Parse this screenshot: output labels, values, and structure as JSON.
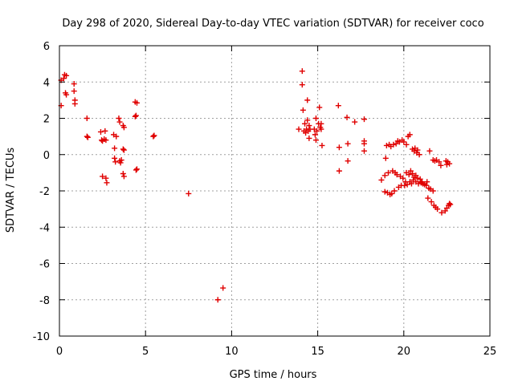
{
  "chart_data": {
    "type": "scatter",
    "title": "Day 298 of 2020, Sidereal Day-to-day VTEC variation (SDTVAR) for receiver coco",
    "xlabel": "GPS time / hours",
    "ylabel": "SDTVAR / TECUs",
    "xlim": [
      0,
      25
    ],
    "ylim": [
      -10,
      6
    ],
    "xticks": [
      0,
      5,
      10,
      15,
      20,
      25
    ],
    "yticks": [
      -10,
      -8,
      -6,
      -4,
      -2,
      0,
      2,
      4,
      6
    ],
    "grid": true,
    "marker": "plus",
    "colors": {
      "points": "#e00000",
      "axes": "#000000",
      "grid": "#a0a0a0"
    },
    "series": [
      {
        "name": "SDTVAR",
        "points": [
          [
            0.1,
            4.1
          ],
          [
            0.1,
            2.7
          ],
          [
            0.25,
            4.2
          ],
          [
            0.3,
            4.4
          ],
          [
            0.35,
            3.4
          ],
          [
            0.4,
            4.35
          ],
          [
            0.4,
            3.3
          ],
          [
            0.85,
            3.9
          ],
          [
            0.85,
            3.5
          ],
          [
            0.9,
            3.0
          ],
          [
            0.9,
            2.8
          ],
          [
            1.6,
            2.0
          ],
          [
            1.6,
            1.0
          ],
          [
            1.65,
            0.95
          ],
          [
            2.4,
            1.25
          ],
          [
            2.45,
            0.8
          ],
          [
            2.5,
            0.75
          ],
          [
            2.5,
            -1.2
          ],
          [
            2.6,
            0.85
          ],
          [
            2.65,
            1.3
          ],
          [
            2.7,
            0.8
          ],
          [
            2.7,
            -1.3
          ],
          [
            2.75,
            -1.55
          ],
          [
            3.15,
            1.1
          ],
          [
            3.2,
            0.35
          ],
          [
            3.2,
            -0.2
          ],
          [
            3.25,
            -0.4
          ],
          [
            3.3,
            1.0
          ],
          [
            3.45,
            2.0
          ],
          [
            3.5,
            1.8
          ],
          [
            3.5,
            -0.35
          ],
          [
            3.55,
            -0.45
          ],
          [
            3.6,
            -0.3
          ],
          [
            3.7,
            1.6
          ],
          [
            3.75,
            1.5
          ],
          [
            3.7,
            0.3
          ],
          [
            3.75,
            0.25
          ],
          [
            3.7,
            -1.05
          ],
          [
            3.75,
            -1.2
          ],
          [
            4.4,
            2.9
          ],
          [
            4.5,
            2.85
          ],
          [
            4.4,
            2.1
          ],
          [
            4.45,
            2.15
          ],
          [
            4.45,
            -0.85
          ],
          [
            4.5,
            -0.8
          ],
          [
            5.45,
            1.0
          ],
          [
            5.5,
            1.05
          ],
          [
            7.5,
            -2.15
          ],
          [
            9.2,
            -8.0
          ],
          [
            9.5,
            -7.35
          ],
          [
            13.9,
            1.4
          ],
          [
            14.1,
            4.6
          ],
          [
            14.1,
            3.85
          ],
          [
            14.15,
            2.45
          ],
          [
            14.2,
            1.3
          ],
          [
            14.25,
            1.7
          ],
          [
            14.3,
            1.2
          ],
          [
            14.35,
            1.4
          ],
          [
            14.4,
            3.0
          ],
          [
            14.4,
            1.9
          ],
          [
            14.45,
            1.3
          ],
          [
            14.5,
            0.9
          ],
          [
            14.5,
            1.6
          ],
          [
            14.55,
            1.4
          ],
          [
            14.8,
            1.4
          ],
          [
            14.85,
            1.1
          ],
          [
            14.9,
            0.8
          ],
          [
            14.9,
            2.0
          ],
          [
            14.95,
            1.3
          ],
          [
            15.05,
            1.7
          ],
          [
            15.1,
            2.6
          ],
          [
            15.15,
            1.5
          ],
          [
            15.2,
            1.7
          ],
          [
            15.2,
            1.4
          ],
          [
            15.25,
            0.5
          ],
          [
            16.2,
            2.7
          ],
          [
            16.25,
            0.4
          ],
          [
            16.25,
            -0.9
          ],
          [
            16.7,
            2.05
          ],
          [
            16.75,
            0.6
          ],
          [
            16.75,
            -0.35
          ],
          [
            17.15,
            1.8
          ],
          [
            17.7,
            1.95
          ],
          [
            17.7,
            0.75
          ],
          [
            17.7,
            0.6
          ],
          [
            17.7,
            0.2
          ],
          [
            18.7,
            -1.4
          ],
          [
            18.9,
            -2.05
          ],
          [
            18.9,
            -1.15
          ],
          [
            18.95,
            -0.2
          ],
          [
            19.0,
            0.5
          ],
          [
            19.05,
            -2.1
          ],
          [
            19.1,
            -1.0
          ],
          [
            19.15,
            0.55
          ],
          [
            19.2,
            -2.2
          ],
          [
            19.25,
            0.45
          ],
          [
            19.3,
            -2.15
          ],
          [
            19.35,
            -0.9
          ],
          [
            19.4,
            0.55
          ],
          [
            19.45,
            -2.0
          ],
          [
            19.5,
            -1.0
          ],
          [
            19.55,
            0.6
          ],
          [
            19.6,
            -1.1
          ],
          [
            19.65,
            0.75
          ],
          [
            19.7,
            -1.8
          ],
          [
            19.75,
            0.7
          ],
          [
            19.8,
            -1.2
          ],
          [
            19.85,
            -1.7
          ],
          [
            19.9,
            0.8
          ],
          [
            19.95,
            -1.3
          ],
          [
            20.0,
            0.7
          ],
          [
            20.05,
            -1.7
          ],
          [
            20.1,
            -1.5
          ],
          [
            20.15,
            0.55
          ],
          [
            20.15,
            -1.0
          ],
          [
            20.2,
            -1.65
          ],
          [
            20.25,
            1.0
          ],
          [
            20.3,
            -1.1
          ],
          [
            20.35,
            1.1
          ],
          [
            20.35,
            -1.5
          ],
          [
            20.4,
            -0.9
          ],
          [
            20.45,
            -1.6
          ],
          [
            20.5,
            -1.05
          ],
          [
            20.5,
            0.3
          ],
          [
            20.55,
            -1.4
          ],
          [
            20.6,
            0.2
          ],
          [
            20.6,
            -1.25
          ],
          [
            20.65,
            0.35
          ],
          [
            20.7,
            -1.15
          ],
          [
            20.7,
            -1.5
          ],
          [
            20.75,
            0.1
          ],
          [
            20.8,
            0.25
          ],
          [
            20.8,
            -1.3
          ],
          [
            20.85,
            -1.6
          ],
          [
            20.9,
            0.0
          ],
          [
            20.95,
            -1.35
          ],
          [
            21.0,
            -1.55
          ],
          [
            21.05,
            -1.5
          ],
          [
            21.1,
            -1.6
          ],
          [
            21.2,
            -1.65
          ],
          [
            21.3,
            -1.7
          ],
          [
            21.35,
            -1.5
          ],
          [
            21.4,
            -2.4
          ],
          [
            21.45,
            -1.85
          ],
          [
            21.5,
            0.2
          ],
          [
            21.55,
            -1.9
          ],
          [
            21.6,
            -2.6
          ],
          [
            21.7,
            -0.3
          ],
          [
            21.7,
            -2.0
          ],
          [
            21.75,
            -2.8
          ],
          [
            21.8,
            -0.35
          ],
          [
            21.85,
            -2.9
          ],
          [
            21.9,
            -0.3
          ],
          [
            21.95,
            -3.0
          ],
          [
            22.05,
            -0.4
          ],
          [
            22.15,
            -0.6
          ],
          [
            22.2,
            -3.2
          ],
          [
            22.4,
            -3.1
          ],
          [
            22.45,
            -0.35
          ],
          [
            22.5,
            -0.55
          ],
          [
            22.5,
            -2.95
          ],
          [
            22.55,
            -0.4
          ],
          [
            22.6,
            -2.8
          ],
          [
            22.65,
            -0.5
          ],
          [
            22.65,
            -2.7
          ],
          [
            22.7,
            -2.75
          ]
        ]
      }
    ]
  }
}
